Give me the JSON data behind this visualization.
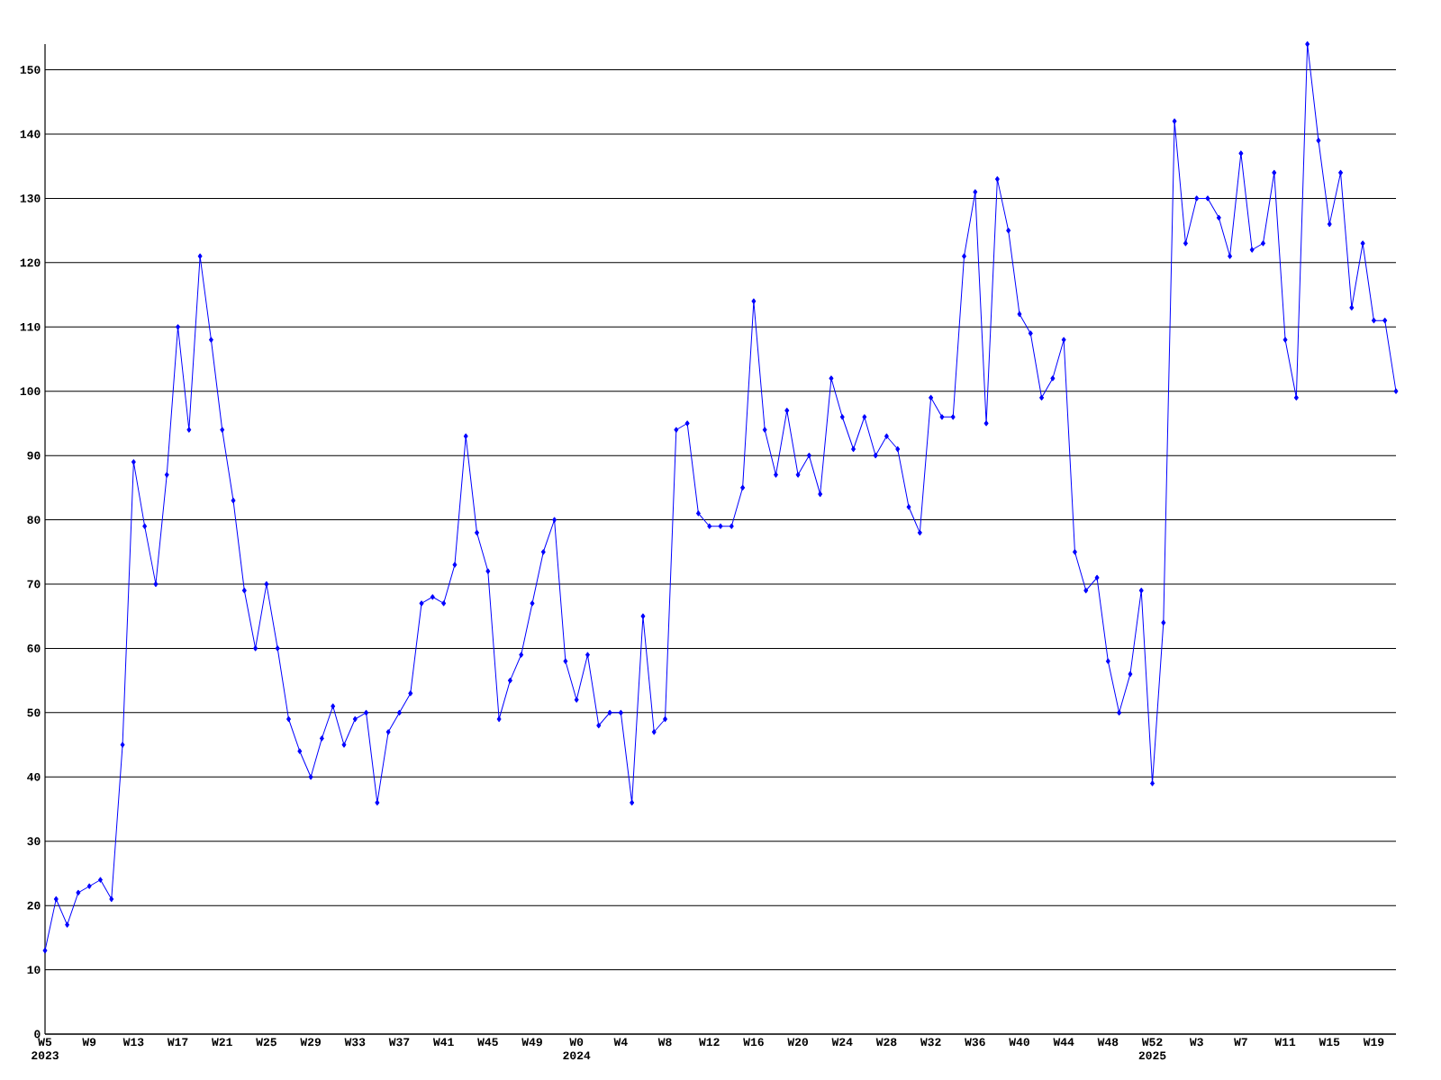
{
  "chart_data": {
    "type": "line",
    "categories": [
      "W5 2023",
      null,
      null,
      null,
      "W9",
      null,
      null,
      null,
      "W13",
      null,
      null,
      null,
      "W17",
      null,
      null,
      null,
      "W21",
      null,
      null,
      null,
      "W25",
      null,
      null,
      null,
      "W29",
      null,
      null,
      null,
      "W33",
      null,
      null,
      null,
      "W37",
      null,
      null,
      null,
      "W41",
      null,
      null,
      null,
      "W45",
      null,
      null,
      null,
      "W49",
      null,
      null,
      null,
      "W0 2024",
      null,
      null,
      null,
      "W4",
      null,
      null,
      null,
      "W8",
      null,
      null,
      null,
      "W12",
      null,
      null,
      null,
      "W16",
      null,
      null,
      null,
      "W20",
      null,
      null,
      null,
      "W24",
      null,
      null,
      null,
      "W28",
      null,
      null,
      null,
      "W32",
      null,
      null,
      null,
      "W36",
      null,
      null,
      null,
      "W40",
      null,
      null,
      null,
      "W44",
      null,
      null,
      null,
      "W48",
      null,
      null,
      null,
      "W52 2025",
      null,
      null,
      null,
      "W3",
      null,
      null,
      null,
      "W7",
      null,
      null,
      null,
      "W11",
      null,
      null,
      null,
      "W15",
      null,
      null,
      null,
      "W19",
      null,
      null
    ],
    "values": [
      13,
      21,
      17,
      22,
      23,
      24,
      21,
      45,
      89,
      79,
      70,
      87,
      110,
      94,
      121,
      108,
      94,
      83,
      69,
      60,
      70,
      60,
      49,
      44,
      40,
      46,
      51,
      45,
      49,
      50,
      36,
      47,
      50,
      53,
      67,
      68,
      67,
      73,
      93,
      78,
      72,
      49,
      55,
      59,
      67,
      75,
      80,
      58,
      52,
      59,
      48,
      50,
      50,
      36,
      65,
      47,
      49,
      94,
      95,
      81,
      79,
      79,
      79,
      85,
      114,
      94,
      87,
      97,
      87,
      90,
      84,
      102,
      96,
      91,
      96,
      90,
      93,
      91,
      82,
      78,
      99,
      96,
      96,
      121,
      131,
      95,
      133,
      125,
      112,
      109,
      99,
      102,
      108,
      75,
      69,
      71,
      58,
      50,
      56,
      69,
      39,
      64,
      142,
      123,
      130,
      130,
      127,
      121,
      137,
      122,
      123,
      134,
      108,
      99,
      154,
      139,
      126,
      134,
      113,
      123,
      111,
      111,
      100
    ],
    "color": "#0000ff",
    "marker": "diamond",
    "grid": "y",
    "ylim": [
      0,
      154
    ],
    "yticks": [
      0,
      10,
      20,
      30,
      40,
      50,
      60,
      70,
      80,
      90,
      100,
      110,
      120,
      130,
      140,
      150
    ]
  }
}
